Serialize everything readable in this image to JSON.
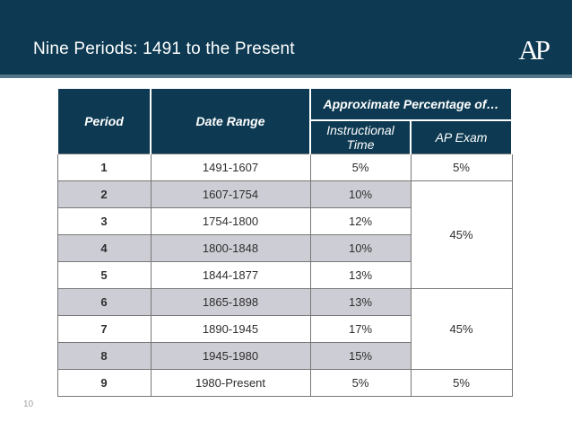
{
  "slide": {
    "title": "Nine Periods: 1491 to the Present",
    "logo_text": "AP",
    "page_number": "10"
  },
  "colors": {
    "banner_blue": "#0d3a52",
    "accent_strip": "#547488",
    "row_alt_gray": "#cdcdd5",
    "border_gray": "#787878",
    "header_text": "#ffffff",
    "body_text": "#2e2e2e",
    "page_number_gray": "#9f9f9f"
  },
  "chart_data": {
    "type": "table",
    "title": "Nine Periods: 1491 to the Present",
    "header": {
      "period": "Period",
      "date_range": "Date Range",
      "group": "Approximate Percentage of…",
      "instructional_time": "Instructional Time",
      "ap_exam": "AP Exam"
    },
    "rows": [
      {
        "period": "1",
        "date_range": "1491-1607",
        "instructional_time": "5%",
        "ap_exam": "5%"
      },
      {
        "period": "2",
        "date_range": "1607-1754",
        "instructional_time": "10%"
      },
      {
        "period": "3",
        "date_range": "1754-1800",
        "instructional_time": "12%"
      },
      {
        "period": "4",
        "date_range": "1800-1848",
        "instructional_time": "10%"
      },
      {
        "period": "5",
        "date_range": "1844-1877",
        "instructional_time": "13%"
      },
      {
        "period": "6",
        "date_range": "1865-1898",
        "instructional_time": "13%"
      },
      {
        "period": "7",
        "date_range": "1890-1945",
        "instructional_time": "17%"
      },
      {
        "period": "8",
        "date_range": "1945-1980",
        "instructional_time": "15%"
      },
      {
        "period": "9",
        "date_range": "1980-Present",
        "instructional_time": "5%",
        "ap_exam": "5%"
      }
    ],
    "merged_ap_exam_cells": [
      {
        "rows_spanned": "2-5",
        "value": "45%"
      },
      {
        "rows_spanned": "6-8",
        "value": "45%"
      }
    ]
  }
}
